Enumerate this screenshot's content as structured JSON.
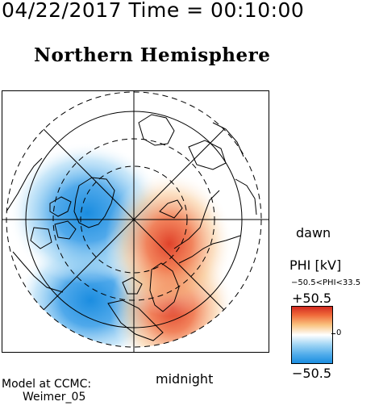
{
  "header": {
    "datetime": "04/22/2017 Time = 00:10:00",
    "hemisphere": "Northern Hemisphere"
  },
  "map": {
    "orientation_labels": {
      "right": "dawn",
      "bottom": "midnight"
    },
    "potential_cells": [
      {
        "name": "dusk-cell",
        "sign": "negative",
        "color": "#1b8de0"
      },
      {
        "name": "dawn-cell",
        "sign": "positive",
        "color": "#e0422a"
      }
    ]
  },
  "colorbar": {
    "title": "PHI [kV]",
    "range_text": "−50.5<PHI<33.5",
    "max_label": "+50.5",
    "zero_label": "0",
    "min_label": "−50.5",
    "colors": {
      "max": "#d32a20",
      "mid": "#ffffff",
      "min": "#1b8de0"
    }
  },
  "model": {
    "line1": "Model at CCMC:",
    "line2": "Weimer_05"
  }
}
